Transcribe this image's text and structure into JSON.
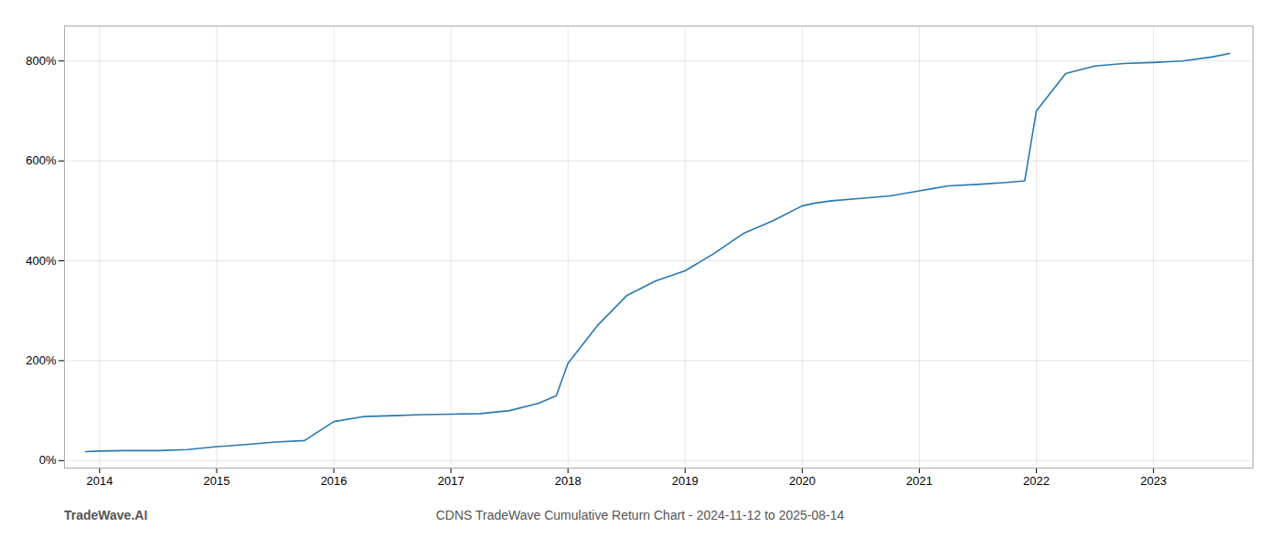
{
  "chart_data": {
    "type": "line",
    "title": "CDNS TradeWave Cumulative Return Chart - 2024-11-12 to 2025-08-14",
    "annotations": [
      "TradeWave.AI"
    ],
    "x": [
      2013.88,
      2014.0,
      2014.2,
      2014.5,
      2014.75,
      2015.0,
      2015.25,
      2015.5,
      2015.75,
      2016.0,
      2016.25,
      2016.5,
      2016.75,
      2017.0,
      2017.25,
      2017.5,
      2017.75,
      2017.9,
      2018.0,
      2018.25,
      2018.5,
      2018.75,
      2019.0,
      2019.25,
      2019.5,
      2019.75,
      2020.0,
      2020.1,
      2020.25,
      2020.5,
      2020.75,
      2021.0,
      2021.25,
      2021.5,
      2021.75,
      2021.9,
      2022.0,
      2022.25,
      2022.5,
      2022.75,
      2023.0,
      2023.25,
      2023.5,
      2023.65
    ],
    "values": [
      18,
      19,
      20,
      20,
      22,
      28,
      32,
      37,
      40,
      78,
      88,
      90,
      92,
      93,
      94,
      100,
      115,
      130,
      195,
      270,
      330,
      360,
      380,
      415,
      455,
      480,
      510,
      515,
      520,
      525,
      530,
      540,
      550,
      553,
      557,
      560,
      700,
      775,
      790,
      795,
      797,
      800,
      808,
      815
    ],
    "color": "#2878b0",
    "xlim": [
      2013.7,
      2023.85
    ],
    "ylim": [
      -15,
      870
    ],
    "xticks": [
      2014,
      2015,
      2016,
      2017,
      2018,
      2019,
      2020,
      2021,
      2022,
      2023
    ],
    "yticks": [
      {
        "value": 0,
        "label": "0%"
      },
      {
        "value": 200,
        "label": "200%"
      },
      {
        "value": 400,
        "label": "400%"
      },
      {
        "value": 600,
        "label": "600%"
      },
      {
        "value": 800,
        "label": "800%"
      }
    ],
    "grid": true
  }
}
